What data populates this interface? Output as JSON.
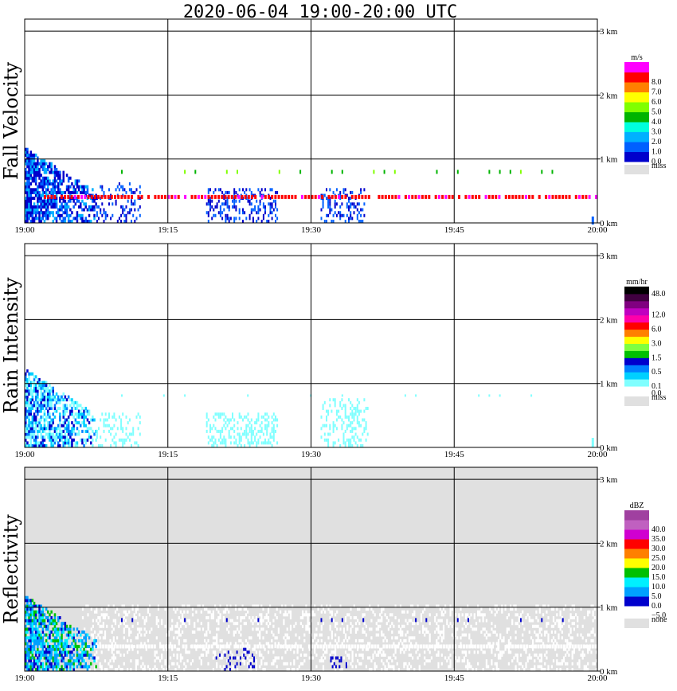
{
  "title": "2020-06-04   19:00-20:00 UTC",
  "x_ticks": [
    "19:00",
    "19:15",
    "19:30",
    "19:45",
    "20:00"
  ],
  "y_ticks": [
    "0 km",
    "1 km",
    "2 km",
    "3 km"
  ],
  "panels": [
    {
      "id": "fall-velocity",
      "label": "Fall Velocity",
      "unit": "m/s",
      "background": "#ffffff",
      "colorbar": [
        {
          "color": "#e0e0e0",
          "label": "miss"
        },
        {
          "color": "#0000cc",
          "label": "0.0"
        },
        {
          "color": "#0060ff",
          "label": "1.0"
        },
        {
          "color": "#00b0ff",
          "label": "2.0"
        },
        {
          "color": "#00ffdd",
          "label": "3.0"
        },
        {
          "color": "#00b400",
          "label": "4.0"
        },
        {
          "color": "#80ff00",
          "label": "5.0"
        },
        {
          "color": "#ffff00",
          "label": "6.0"
        },
        {
          "color": "#ff8000",
          "label": "7.0"
        },
        {
          "color": "#ff0000",
          "label": "8.0"
        },
        {
          "color": "#ff00ff",
          "label": ""
        }
      ]
    },
    {
      "id": "rain-intensity",
      "label": "Rain Intensity",
      "unit": "mm/hr",
      "background": "#ffffff",
      "colorbar": [
        {
          "color": "#e0e0e0",
          "label": "miss"
        },
        {
          "color": "#ffffff",
          "label": "0.0"
        },
        {
          "color": "#80ffff",
          "label": "0.1"
        },
        {
          "color": "#00d0ff",
          "label": ""
        },
        {
          "color": "#0080ff",
          "label": "0.5"
        },
        {
          "color": "#0000cc",
          "label": ""
        },
        {
          "color": "#00c000",
          "label": "1.5"
        },
        {
          "color": "#80ff40",
          "label": ""
        },
        {
          "color": "#ffff00",
          "label": "3.0"
        },
        {
          "color": "#ff8000",
          "label": ""
        },
        {
          "color": "#ff0000",
          "label": "6.0"
        },
        {
          "color": "#ff00aa",
          "label": ""
        },
        {
          "color": "#c000c0",
          "label": "12.0"
        },
        {
          "color": "#800080",
          "label": ""
        },
        {
          "color": "#400040",
          "label": ""
        },
        {
          "color": "#000000",
          "label": "48.0"
        }
      ]
    },
    {
      "id": "reflectivity",
      "label": "Reflectivity",
      "unit": "dBZ",
      "background": "#e0e0e0",
      "colorbar": [
        {
          "color": "#e0e0e0",
          "label": "none"
        },
        {
          "color": "#ffffff",
          "label": "−5.0"
        },
        {
          "color": "#0000cc",
          "label": "0.0"
        },
        {
          "color": "#00a0ff",
          "label": "5.0"
        },
        {
          "color": "#00f0ff",
          "label": "10.0"
        },
        {
          "color": "#00c000",
          "label": "15.0"
        },
        {
          "color": "#ffff00",
          "label": "20.0"
        },
        {
          "color": "#ff8000",
          "label": "25.0"
        },
        {
          "color": "#ff0000",
          "label": "30.0"
        },
        {
          "color": "#d000d0",
          "label": "35.0"
        },
        {
          "color": "#c060c0",
          "label": "40.0"
        },
        {
          "color": "#a040a0",
          "label": ""
        }
      ]
    }
  ],
  "chart_data": [
    {
      "type": "heatmap",
      "panel": "Fall Velocity",
      "xlim": [
        "19:00",
        "20:00"
      ],
      "ylim_km": [
        0,
        3.1
      ],
      "unit": "m/s",
      "grid": true,
      "regions": [
        {
          "x": [
            "19:00",
            "19:08"
          ],
          "y_km": [
            0,
            1.15
          ],
          "value": "0.0-2.0"
        },
        {
          "x": [
            "19:02",
            "20:00"
          ],
          "y_km": [
            0.36,
            0.42
          ],
          "value": "7.0-8.0"
        },
        {
          "x": [
            "19:05",
            "19:59"
          ],
          "y_km": [
            0.73,
            0.8
          ],
          "value": "4.0-5.0"
        },
        {
          "x": [
            "19:13",
            "19:26"
          ],
          "y_km": [
            0,
            0.5
          ],
          "value": "0.0-1.0"
        },
        {
          "x": [
            "19:31",
            "19:36"
          ],
          "y_km": [
            0,
            0.5
          ],
          "value": "0.0-1.0"
        }
      ]
    },
    {
      "type": "heatmap",
      "panel": "Rain Intensity",
      "xlim": [
        "19:00",
        "20:00"
      ],
      "ylim_km": [
        0,
        3.1
      ],
      "unit": "mm/hr",
      "grid": true,
      "regions": [
        {
          "x": [
            "19:00",
            "19:08"
          ],
          "y_km": [
            0,
            1.2
          ],
          "value": "0.1-1.5"
        },
        {
          "x": [
            "19:13",
            "19:26"
          ],
          "y_km": [
            0,
            0.5
          ],
          "value": "0.1"
        },
        {
          "x": [
            "19:31",
            "19:36"
          ],
          "y_km": [
            0,
            0.75
          ],
          "value": "0.1"
        }
      ]
    },
    {
      "type": "heatmap",
      "panel": "Reflectivity",
      "xlim": [
        "19:00",
        "20:00"
      ],
      "ylim_km": [
        0,
        3.1
      ],
      "unit": "dBZ",
      "grid": true,
      "regions": [
        {
          "x": [
            "19:00",
            "19:08"
          ],
          "y_km": [
            0,
            1.15
          ],
          "value": "0.0-15.0"
        },
        {
          "x": [
            "19:07",
            "20:00"
          ],
          "y_km": [
            0,
            1.0
          ],
          "value": "-5.0"
        },
        {
          "x": [
            "19:05",
            "19:59"
          ],
          "y_km": [
            0.7,
            0.8
          ],
          "value": "0.0"
        }
      ]
    }
  ]
}
